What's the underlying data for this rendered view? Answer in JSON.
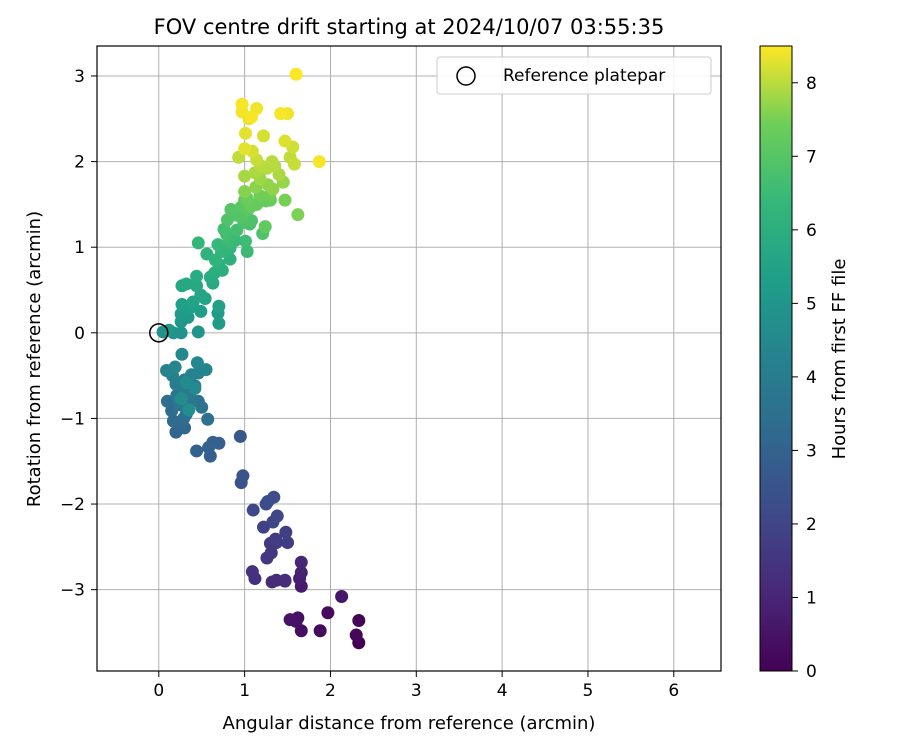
{
  "colors": {
    "grid": "#b0b0b0",
    "axes": "#000000",
    "colormap": "viridis",
    "ref_marker_edge": "#000000"
  },
  "chart_data": {
    "type": "scatter",
    "title": "FOV centre drift starting at 2024/10/07 03:55:35",
    "xlabel": "Angular distance from reference (arcmin)",
    "ylabel": "Rotation from reference (arcmin)",
    "colorbar_label": "Hours from first FF file",
    "xlim": [
      -0.72,
      6.55
    ],
    "ylim": [
      -3.95,
      3.35
    ],
    "xticks": [
      0,
      1,
      2,
      3,
      4,
      5,
      6
    ],
    "xtick_labels": [
      "0",
      "1",
      "2",
      "3",
      "4",
      "5",
      "6"
    ],
    "yticks": [
      -3,
      -2,
      -1,
      0,
      1,
      2,
      3
    ],
    "ytick_labels": [
      "−3",
      "−2",
      "−1",
      "0",
      "1",
      "2",
      "3"
    ],
    "colorbar_range": [
      0,
      8.5
    ],
    "colorbar_ticks": [
      0,
      1,
      2,
      3,
      4,
      5,
      6,
      7,
      8
    ],
    "colorbar_tick_labels": [
      "0",
      "1",
      "2",
      "3",
      "4",
      "5",
      "6",
      "7",
      "8"
    ],
    "grid": true,
    "legend": {
      "location": "upper right",
      "entries": [
        "Reference platepar"
      ]
    },
    "reference_point": {
      "x": 0,
      "y": 0
    },
    "series": [
      {
        "marker": "filled circle colored by hours",
        "points": [
          [
            2.33,
            -3.62,
            0.0
          ],
          [
            2.33,
            -3.36,
            0.1
          ],
          [
            2.3,
            -3.53,
            0.15
          ],
          [
            1.88,
            -3.48,
            0.25
          ],
          [
            1.97,
            -3.27,
            0.3
          ],
          [
            1.66,
            -3.48,
            0.35
          ],
          [
            1.62,
            -3.33,
            0.4
          ],
          [
            1.6,
            -3.37,
            0.45
          ],
          [
            1.53,
            -3.35,
            0.5
          ],
          [
            2.13,
            -3.08,
            0.55
          ],
          [
            1.66,
            -2.96,
            0.7
          ],
          [
            1.64,
            -2.87,
            0.8
          ],
          [
            1.66,
            -2.8,
            0.9
          ],
          [
            1.66,
            -2.68,
            1.0
          ],
          [
            1.47,
            -2.9,
            1.1
          ],
          [
            1.37,
            -2.89,
            1.15
          ],
          [
            1.32,
            -2.91,
            1.2
          ],
          [
            1.47,
            -2.89,
            1.25
          ],
          [
            1.12,
            -2.87,
            1.3
          ],
          [
            1.09,
            -2.79,
            1.35
          ],
          [
            1.26,
            -2.63,
            1.5
          ],
          [
            1.31,
            -2.57,
            1.55
          ],
          [
            1.36,
            -2.41,
            1.6
          ],
          [
            1.3,
            -2.46,
            1.65
          ],
          [
            1.37,
            -2.45,
            1.7
          ],
          [
            1.5,
            -2.45,
            1.75
          ],
          [
            1.48,
            -2.33,
            1.8
          ],
          [
            1.22,
            -2.27,
            1.9
          ],
          [
            1.33,
            -2.21,
            2.0
          ],
          [
            1.38,
            -2.14,
            2.05
          ],
          [
            1.1,
            -2.07,
            2.1
          ],
          [
            1.27,
            -1.97,
            2.2
          ],
          [
            1.34,
            -1.92,
            2.25
          ],
          [
            1.25,
            -2.0,
            2.3
          ],
          [
            0.96,
            -1.75,
            2.4
          ],
          [
            0.98,
            -1.67,
            2.5
          ],
          [
            0.95,
            -1.21,
            2.6
          ],
          [
            0.63,
            -1.28,
            2.8
          ],
          [
            0.6,
            -1.44,
            2.85
          ],
          [
            0.7,
            -1.29,
            2.9
          ],
          [
            0.58,
            -1.34,
            2.95
          ],
          [
            0.44,
            -1.38,
            3.0
          ],
          [
            0.2,
            -1.16,
            3.1
          ],
          [
            0.3,
            -1.11,
            3.15
          ],
          [
            0.25,
            -1.08,
            3.2
          ],
          [
            0.17,
            -1.03,
            3.3
          ],
          [
            0.29,
            -1.0,
            3.35
          ],
          [
            0.15,
            -0.91,
            3.4
          ],
          [
            0.1,
            -0.8,
            3.45
          ],
          [
            0.57,
            -1.01,
            3.5
          ],
          [
            0.32,
            -0.95,
            3.55
          ],
          [
            0.46,
            -0.8,
            3.6
          ],
          [
            0.5,
            -0.87,
            3.65
          ],
          [
            0.24,
            -0.84,
            3.7
          ],
          [
            0.31,
            -0.87,
            3.75
          ],
          [
            0.38,
            -0.79,
            3.8
          ],
          [
            0.21,
            -0.73,
            3.85
          ],
          [
            0.36,
            -0.7,
            3.9
          ],
          [
            0.27,
            -0.63,
            3.95
          ],
          [
            0.42,
            -0.62,
            4.0
          ],
          [
            0.2,
            -0.6,
            4.05
          ],
          [
            0.3,
            -0.55,
            4.1
          ],
          [
            0.16,
            -0.5,
            4.15
          ],
          [
            0.38,
            -0.49,
            4.2
          ],
          [
            0.46,
            -0.47,
            4.25
          ],
          [
            0.09,
            -0.44,
            4.3
          ],
          [
            0.55,
            -0.43,
            4.35
          ],
          [
            0.19,
            -0.4,
            4.4
          ],
          [
            0.45,
            -0.35,
            4.45
          ],
          [
            0.27,
            -0.25,
            4.5
          ],
          [
            0.42,
            -0.65,
            4.55
          ],
          [
            0.32,
            -0.58,
            4.6
          ],
          [
            0.26,
            -0.77,
            4.65
          ],
          [
            0.35,
            -0.9,
            4.7
          ],
          [
            0.05,
            0.01,
            4.8
          ],
          [
            0.17,
            0.0,
            4.85
          ],
          [
            0.26,
            0.0,
            4.9
          ],
          [
            0.46,
            0.01,
            4.95
          ],
          [
            0.12,
            0.03,
            5.0
          ],
          [
            0.26,
            0.13,
            5.05
          ],
          [
            0.34,
            0.18,
            5.1
          ],
          [
            0.26,
            0.22,
            5.15
          ],
          [
            0.7,
            0.11,
            5.2
          ],
          [
            0.69,
            0.23,
            5.25
          ],
          [
            0.49,
            0.25,
            5.3
          ],
          [
            0.36,
            0.29,
            5.35
          ],
          [
            0.27,
            0.33,
            5.4
          ],
          [
            0.7,
            0.31,
            5.45
          ],
          [
            0.4,
            0.36,
            5.5
          ],
          [
            0.54,
            0.4,
            5.55
          ],
          [
            0.49,
            0.44,
            5.6
          ],
          [
            0.27,
            0.55,
            5.65
          ],
          [
            0.32,
            0.57,
            5.7
          ],
          [
            0.44,
            0.55,
            5.75
          ],
          [
            0.63,
            0.58,
            5.8
          ],
          [
            0.44,
            0.66,
            5.85
          ],
          [
            0.6,
            0.65,
            5.9
          ],
          [
            0.65,
            0.7,
            5.95
          ],
          [
            0.74,
            0.73,
            6.0
          ],
          [
            0.7,
            0.8,
            6.05
          ],
          [
            0.83,
            0.86,
            6.1
          ],
          [
            0.56,
            0.92,
            6.15
          ],
          [
            0.66,
            0.85,
            6.2
          ],
          [
            0.73,
            0.95,
            6.25
          ],
          [
            0.83,
            0.99,
            6.3
          ],
          [
            0.46,
            1.05,
            6.35
          ],
          [
            0.69,
            1.03,
            6.4
          ],
          [
            0.89,
            1.08,
            6.45
          ],
          [
            0.82,
            1.06,
            6.5
          ],
          [
            1.01,
            1.07,
            6.55
          ],
          [
            0.79,
            1.15,
            6.6
          ],
          [
            0.91,
            1.2,
            6.65
          ],
          [
            0.76,
            1.21,
            6.7
          ],
          [
            1.06,
            1.27,
            6.75
          ],
          [
            0.99,
            1.29,
            6.8
          ],
          [
            1.08,
            1.31,
            6.85
          ],
          [
            0.8,
            1.32,
            6.9
          ],
          [
            0.92,
            1.37,
            6.95
          ],
          [
            0.84,
            1.44,
            7.0
          ],
          [
            0.96,
            1.47,
            7.05
          ],
          [
            1.04,
            1.44,
            7.1
          ],
          [
            1.0,
            1.55,
            7.15
          ],
          [
            1.14,
            1.5,
            7.2
          ],
          [
            1.25,
            1.54,
            7.25
          ],
          [
            1.3,
            1.55,
            7.3
          ],
          [
            1.03,
            1.57,
            7.35
          ],
          [
            1.18,
            1.6,
            7.4
          ],
          [
            1.29,
            1.6,
            7.45
          ],
          [
            1.47,
            1.55,
            7.5
          ],
          [
            1.62,
            1.38,
            7.55
          ],
          [
            1.0,
            1.65,
            7.6
          ],
          [
            1.13,
            1.7,
            7.65
          ],
          [
            1.27,
            1.73,
            7.7
          ],
          [
            1.45,
            1.76,
            7.75
          ],
          [
            1.18,
            1.8,
            7.8
          ],
          [
            1.0,
            1.83,
            7.85
          ],
          [
            1.12,
            1.87,
            7.9
          ],
          [
            1.26,
            1.92,
            7.95
          ],
          [
            1.32,
            2.0,
            8.0
          ],
          [
            0.93,
            2.05,
            8.05
          ],
          [
            1.14,
            2.02,
            8.1
          ],
          [
            1.56,
            2.17,
            8.15
          ],
          [
            1.22,
            2.3,
            8.2
          ],
          [
            1.47,
            2.24,
            8.25
          ],
          [
            1.01,
            2.33,
            8.3
          ],
          [
            1.24,
            1.24,
            7.2
          ],
          [
            1.08,
            1.48,
            7.3
          ],
          [
            1.21,
            1.16,
            6.9
          ],
          [
            1.03,
            0.95,
            6.5
          ],
          [
            0.97,
            1.35,
            6.95
          ],
          [
            1.33,
            1.68,
            7.7
          ],
          [
            1.35,
            1.95,
            7.95
          ],
          [
            1.58,
            1.97,
            8.1
          ],
          [
            1.4,
            1.85,
            7.9
          ],
          [
            1.53,
            2.05,
            8.05
          ],
          [
            1.19,
            1.95,
            8.0
          ],
          [
            1.09,
            2.12,
            8.2
          ],
          [
            1.0,
            2.15,
            8.3
          ],
          [
            1.05,
            2.5,
            8.35
          ],
          [
            0.97,
            2.58,
            8.4
          ],
          [
            1.14,
            2.62,
            8.4
          ],
          [
            1.5,
            2.56,
            8.4
          ],
          [
            1.42,
            2.56,
            8.45
          ],
          [
            1.08,
            2.52,
            8.45
          ],
          [
            0.97,
            2.67,
            8.45
          ],
          [
            1.87,
            2.0,
            8.45
          ],
          [
            1.6,
            3.02,
            8.5
          ]
        ]
      }
    ]
  }
}
